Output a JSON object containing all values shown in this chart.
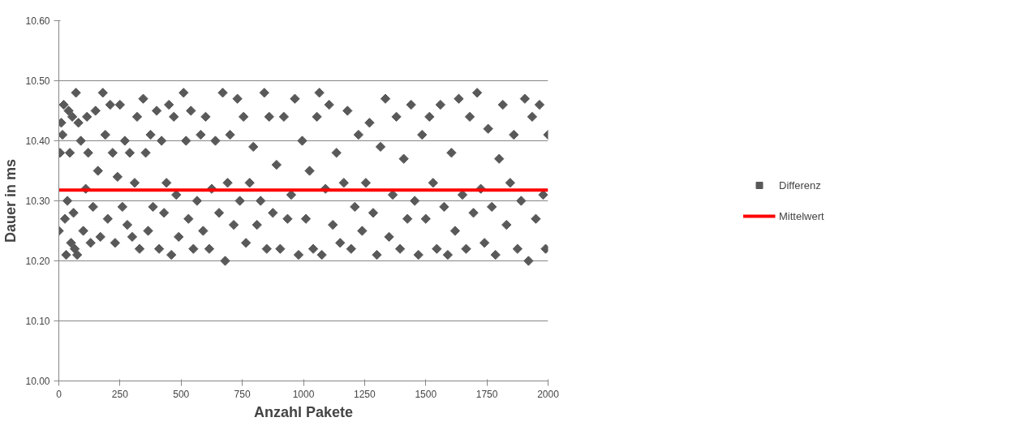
{
  "chart_data": {
    "type": "scatter",
    "xlabel": "Anzahl Pakete",
    "ylabel": "Dauer in ms",
    "xlim": [
      0,
      2000
    ],
    "ylim": [
      10.0,
      10.6
    ],
    "xticks": [
      0,
      250,
      500,
      750,
      1000,
      1250,
      1500,
      1750,
      2000
    ],
    "yticks": [
      {
        "value": 10.0,
        "label": "10.00"
      },
      {
        "value": 10.1,
        "label": "10.10"
      },
      {
        "value": 10.2,
        "label": "10.20"
      },
      {
        "value": 10.3,
        "label": "10.30"
      },
      {
        "value": 10.4,
        "label": "10.40"
      },
      {
        "value": 10.5,
        "label": "10.50"
      },
      {
        "value": 10.6,
        "label": "10.60"
      }
    ],
    "grid": "y",
    "legend": "right",
    "series": [
      {
        "name": "Differenz",
        "color": "#595959",
        "type": "scatter",
        "marker": "diamond",
        "x": [
          0,
          5,
          10,
          15,
          20,
          25,
          30,
          35,
          40,
          45,
          50,
          55,
          60,
          65,
          70,
          75,
          80,
          90,
          100,
          110,
          115,
          120,
          130,
          140,
          150,
          160,
          170,
          180,
          190,
          200,
          210,
          220,
          230,
          240,
          250,
          260,
          270,
          280,
          290,
          300,
          310,
          320,
          330,
          345,
          355,
          365,
          375,
          385,
          400,
          410,
          420,
          430,
          440,
          450,
          460,
          470,
          480,
          490,
          510,
          520,
          530,
          540,
          550,
          565,
          580,
          590,
          600,
          615,
          625,
          640,
          655,
          670,
          680,
          690,
          700,
          715,
          730,
          740,
          755,
          765,
          780,
          795,
          810,
          825,
          840,
          850,
          860,
          875,
          890,
          905,
          920,
          935,
          950,
          965,
          980,
          995,
          1010,
          1025,
          1040,
          1055,
          1065,
          1075,
          1090,
          1105,
          1120,
          1135,
          1150,
          1165,
          1180,
          1195,
          1210,
          1225,
          1240,
          1255,
          1270,
          1285,
          1300,
          1315,
          1335,
          1350,
          1365,
          1380,
          1395,
          1410,
          1425,
          1440,
          1455,
          1470,
          1485,
          1500,
          1515,
          1530,
          1545,
          1560,
          1575,
          1590,
          1605,
          1620,
          1635,
          1650,
          1665,
          1680,
          1695,
          1710,
          1725,
          1740,
          1755,
          1770,
          1785,
          1800,
          1815,
          1830,
          1845,
          1860,
          1875,
          1890,
          1905,
          1920,
          1935,
          1950,
          1965,
          1980,
          1990,
          2000
        ],
        "values": [
          10.25,
          10.38,
          10.43,
          10.41,
          10.46,
          10.27,
          10.21,
          10.3,
          10.45,
          10.38,
          10.23,
          10.44,
          10.28,
          10.22,
          10.48,
          10.21,
          10.43,
          10.4,
          10.25,
          10.32,
          10.44,
          10.38,
          10.23,
          10.29,
          10.45,
          10.35,
          10.24,
          10.48,
          10.41,
          10.27,
          10.46,
          10.38,
          10.23,
          10.34,
          10.46,
          10.29,
          10.4,
          10.26,
          10.38,
          10.24,
          10.33,
          10.44,
          10.22,
          10.47,
          10.38,
          10.25,
          10.41,
          10.29,
          10.45,
          10.22,
          10.4,
          10.28,
          10.33,
          10.46,
          10.21,
          10.44,
          10.31,
          10.24,
          10.48,
          10.4,
          10.27,
          10.45,
          10.22,
          10.3,
          10.41,
          10.25,
          10.44,
          10.22,
          10.32,
          10.4,
          10.28,
          10.48,
          10.2,
          10.33,
          10.41,
          10.26,
          10.47,
          10.3,
          10.44,
          10.23,
          10.33,
          10.39,
          10.26,
          10.3,
          10.48,
          10.22,
          10.44,
          10.28,
          10.36,
          10.22,
          10.44,
          10.27,
          10.31,
          10.47,
          10.21,
          10.4,
          10.27,
          10.35,
          10.22,
          10.44,
          10.48,
          10.21,
          10.32,
          10.46,
          10.26,
          10.38,
          10.23,
          10.33,
          10.45,
          10.22,
          10.29,
          10.41,
          10.25,
          10.33,
          10.43,
          10.28,
          10.21,
          10.39,
          10.47,
          10.24,
          10.31,
          10.44,
          10.22,
          10.37,
          10.27,
          10.46,
          10.3,
          10.21,
          10.41,
          10.27,
          10.44,
          10.33,
          10.22,
          10.46,
          10.29,
          10.21,
          10.38,
          10.25,
          10.47,
          10.31,
          10.22,
          10.44,
          10.28,
          10.48,
          10.32,
          10.23,
          10.42,
          10.29,
          10.21,
          10.37,
          10.46,
          10.26,
          10.33,
          10.41,
          10.22,
          10.3,
          10.47,
          10.2,
          10.44,
          10.27,
          10.46,
          10.31,
          10.22,
          10.41
        ]
      },
      {
        "name": "Mittelwert",
        "color": "#ff0000",
        "type": "line",
        "marker": "none",
        "x": [
          0,
          2000
        ],
        "values": [
          10.318,
          10.318
        ]
      }
    ]
  }
}
